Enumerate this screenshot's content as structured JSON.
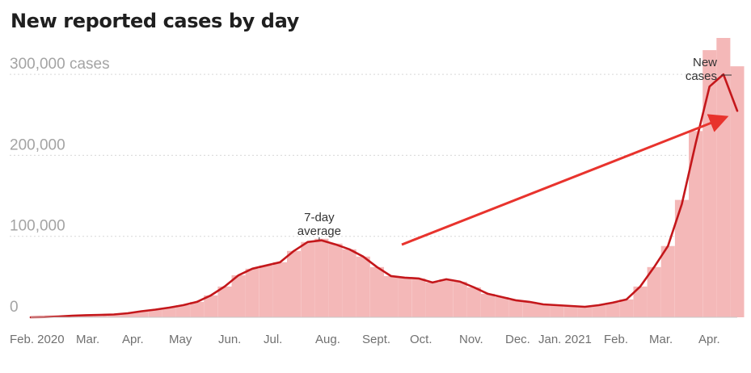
{
  "title": "New reported cases by day",
  "chart_data": {
    "type": "bar",
    "title": "New reported cases by day",
    "xlabel": "",
    "ylabel": "",
    "ylim": [
      0,
      350000
    ],
    "grid": true,
    "y_ticks": [
      "0",
      "100,000",
      "200,000",
      "300,000 cases"
    ],
    "y_tick_values": [
      0,
      100000,
      200000,
      300000
    ],
    "x_ticks": [
      "Feb. 2020",
      "Mar.",
      "Apr.",
      "May",
      "Jun.",
      "Jul.",
      "Aug.",
      "Sept.",
      "Oct.",
      "Nov.",
      "Dec.",
      "Jan. 2021",
      "Feb.",
      "Mar.",
      "Apr."
    ],
    "annotations": {
      "average_label": [
        "7-day",
        "average"
      ],
      "daily_label": [
        "New",
        "cases"
      ]
    },
    "series": [
      {
        "name": "New cases",
        "type": "bar",
        "color": "#f4b8b8",
        "values": [
          0,
          300,
          1000,
          2000,
          2600,
          3000,
          3500,
          5000,
          7500,
          9500,
          12000,
          15000,
          19000,
          27000,
          38000,
          52000,
          60000,
          64000,
          68000,
          82000,
          93000,
          97000,
          91000,
          84000,
          75000,
          62000,
          51000,
          49000,
          48000,
          43000,
          47000,
          44000,
          37000,
          29000,
          25000,
          21000,
          19000,
          16000,
          15000,
          14000,
          13000,
          15000,
          18000,
          22000,
          38000,
          62000,
          88000,
          145000,
          230000,
          330000,
          345000,
          310000
        ]
      },
      {
        "name": "7-day average",
        "type": "line",
        "color": "#c4171b",
        "values": [
          0,
          300,
          1000,
          2000,
          2600,
          3000,
          3500,
          5000,
          7500,
          9500,
          12000,
          15000,
          19000,
          27000,
          38000,
          52000,
          60000,
          64000,
          68000,
          82000,
          93000,
          95000,
          90000,
          84000,
          75000,
          62000,
          51000,
          49000,
          48000,
          43000,
          47000,
          44000,
          37000,
          29000,
          25000,
          21000,
          19000,
          16000,
          15000,
          14000,
          13000,
          15000,
          18000,
          22000,
          38000,
          62000,
          88000,
          140000,
          215000,
          285000,
          300000,
          255000
        ]
      }
    ],
    "colors": {
      "bars": "#f4b8b8",
      "average_line": "#c4171b",
      "arrow": "#e8332d",
      "grid": "#d8d8d8",
      "baseline": "#c8c8c8"
    }
  }
}
